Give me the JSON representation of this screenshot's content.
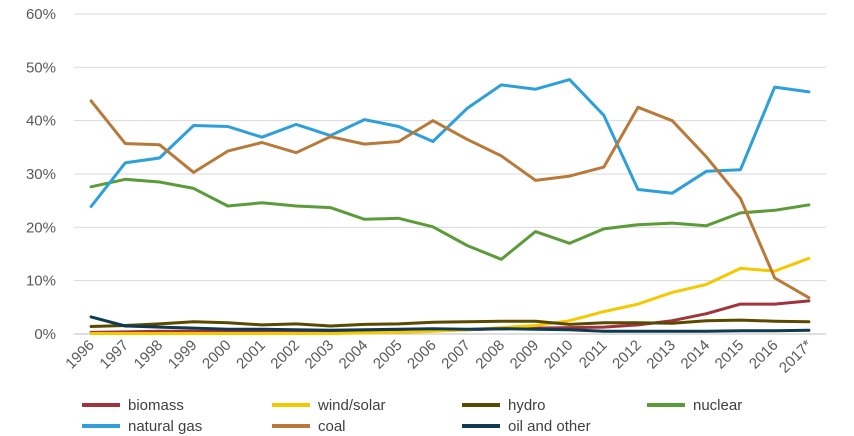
{
  "chart_data": {
    "type": "line",
    "title": "",
    "xlabel": "",
    "ylabel": "",
    "x": [
      "1996",
      "1997",
      "1998",
      "1999",
      "2000",
      "2001",
      "2002",
      "2003",
      "2004",
      "2005",
      "2006",
      "2007",
      "2008",
      "2009",
      "2010",
      "2011",
      "2012",
      "2013",
      "2014",
      "2015",
      "2016",
      "2017*"
    ],
    "ylim": [
      0,
      60
    ],
    "yticks": [
      0,
      10,
      20,
      30,
      40,
      50,
      60
    ],
    "ytick_labels": [
      "0%",
      "10%",
      "20%",
      "30%",
      "40%",
      "50%",
      "60%"
    ],
    "grid": "horizontal",
    "legend_position": "bottom",
    "series": [
      {
        "name": "biomass",
        "color": "#a0333c",
        "values": [
          0.3,
          0.4,
          0.5,
          0.5,
          0.5,
          0.5,
          0.5,
          0.5,
          0.5,
          0.6,
          0.6,
          0.8,
          1.0,
          1.1,
          1.2,
          1.3,
          1.7,
          2.5,
          3.8,
          5.6,
          5.6,
          6.2
        ]
      },
      {
        "name": "wind/solar",
        "color": "#f5c800",
        "values": [
          0.1,
          0.1,
          0.1,
          0.1,
          0.1,
          0.1,
          0.1,
          0.1,
          0.2,
          0.3,
          0.5,
          0.8,
          1.2,
          1.6,
          2.5,
          4.2,
          5.6,
          7.8,
          9.3,
          12.3,
          11.8,
          14.2
        ]
      },
      {
        "name": "hydro",
        "color": "#5a4a00",
        "values": [
          1.4,
          1.6,
          1.9,
          2.3,
          2.1,
          1.7,
          1.9,
          1.5,
          1.8,
          1.9,
          2.2,
          2.3,
          2.4,
          2.4,
          1.8,
          2.1,
          2.1,
          2.0,
          2.5,
          2.6,
          2.4,
          2.3
        ]
      },
      {
        "name": "nuclear",
        "color": "#5b9b3a",
        "values": [
          27.6,
          29.0,
          28.5,
          27.3,
          24.0,
          24.6,
          24.0,
          23.7,
          21.5,
          21.7,
          20.1,
          16.6,
          14.0,
          19.2,
          17.0,
          19.7,
          20.5,
          20.8,
          20.3,
          22.7,
          23.2,
          24.2
        ]
      },
      {
        "name": "natural gas",
        "color": "#2e9fd8",
        "values": [
          23.9,
          32.1,
          33.0,
          39.1,
          38.9,
          36.9,
          39.3,
          37.2,
          40.2,
          38.9,
          36.1,
          42.3,
          46.7,
          45.9,
          47.7,
          41.0,
          27.1,
          26.4,
          30.5,
          30.8,
          46.3,
          45.4
        ]
      },
      {
        "name": "coal",
        "color": "#b87a3a",
        "values": [
          43.7,
          35.7,
          35.5,
          30.3,
          34.3,
          35.9,
          34.0,
          37.0,
          35.6,
          36.1,
          40.0,
          36.5,
          33.4,
          28.8,
          29.6,
          31.3,
          42.5,
          40.0,
          33.2,
          25.4,
          10.5,
          6.8
        ]
      },
      {
        "name": "oil and other",
        "color": "#0e3a52",
        "values": [
          3.2,
          1.5,
          1.3,
          1.1,
          0.9,
          0.9,
          0.8,
          0.7,
          0.8,
          0.9,
          1.0,
          0.9,
          1.0,
          0.9,
          0.8,
          0.5,
          0.5,
          0.5,
          0.5,
          0.6,
          0.6,
          0.7
        ]
      }
    ]
  }
}
